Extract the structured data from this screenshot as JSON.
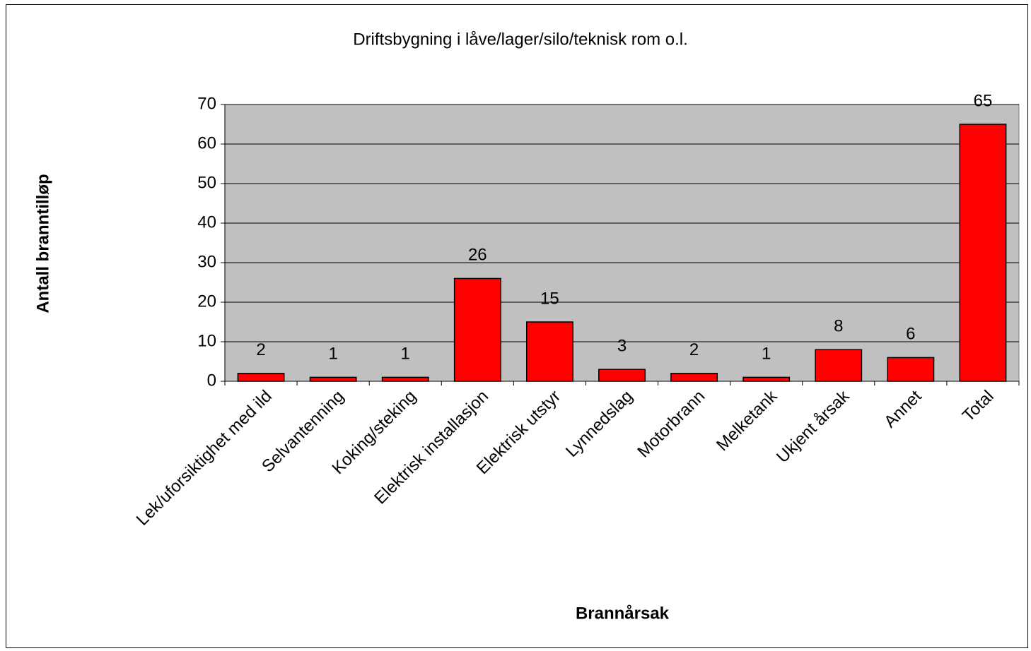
{
  "chart_data": {
    "type": "bar",
    "title": "Driftsbygning i låve/lager/silo/teknisk rom o.l.",
    "x_label": "Brannårsak",
    "y_label": "Antall branntilløp",
    "categories": [
      "Lek/uforsiktighet med ild",
      "Selvantenning",
      "Koking/steking",
      "Elektrisk installasjon",
      "Elektrisk utstyr",
      "Lynnedslag",
      "Motorbrann",
      "Melketank",
      "Ukjent årsak",
      "Annet",
      "Total"
    ],
    "values": [
      2,
      1,
      1,
      26,
      15,
      3,
      2,
      1,
      8,
      6,
      65
    ],
    "color": "#ff0000",
    "ylim": [
      0,
      70
    ],
    "yticks": [
      0,
      10,
      20,
      30,
      40,
      50,
      60,
      70
    ],
    "grid": true
  }
}
